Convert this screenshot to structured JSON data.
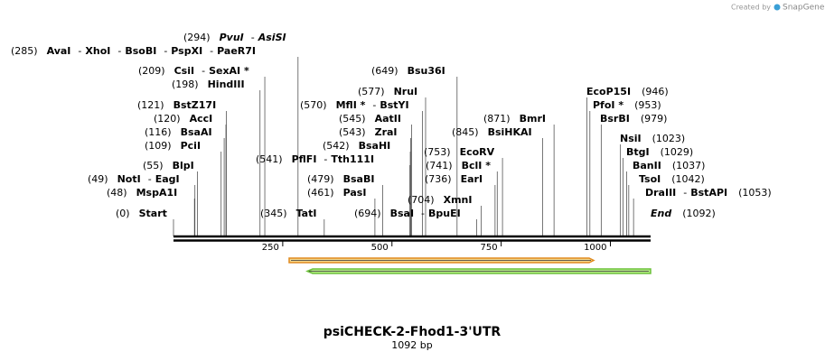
{
  "credit": {
    "prefix": "Created by",
    "brand": "SnapGene"
  },
  "separator": "-",
  "map": {
    "title": "psiCHECK-2-Fhod1-3'UTR",
    "length": "1092 bp",
    "ticks": [
      250,
      500,
      750,
      1000
    ],
    "sites": [
      {
        "pos": {
          "value": 294,
          "label": "(294)"
        },
        "names": [
          "PvuI",
          "AsiSI"
        ]
      },
      {
        "pos": {
          "value": 285,
          "label": "(285)"
        },
        "names": [
          "AvaI",
          "XhoI",
          "BsoBI",
          "PspXI",
          "PaeR7I"
        ]
      },
      {
        "pos": {
          "value": 209,
          "label": "(209)"
        },
        "names": [
          "CsiI",
          "SexAI *"
        ]
      },
      {
        "pos": {
          "value": 198,
          "label": "(198)"
        },
        "names": [
          "HindIII"
        ]
      },
      {
        "pos": {
          "value": 121,
          "label": "(121)"
        },
        "names": [
          "BstZ17I"
        ]
      },
      {
        "pos": {
          "value": 120,
          "label": "(120)"
        },
        "names": [
          "AccI"
        ]
      },
      {
        "pos": {
          "value": 116,
          "label": "(116)"
        },
        "names": [
          "BsaAI"
        ]
      },
      {
        "pos": {
          "value": 109,
          "label": "(109)"
        },
        "names": [
          "PciI"
        ]
      },
      {
        "pos": {
          "value": 55,
          "label": "(55)"
        },
        "names": [
          "BlpI"
        ]
      },
      {
        "pos": {
          "value": 49,
          "label": "(49)"
        },
        "names": [
          "NotI",
          "EagI"
        ]
      },
      {
        "pos": {
          "value": 48,
          "label": "(48)"
        },
        "names": [
          "MspA1I"
        ]
      },
      {
        "pos": {
          "value": 0,
          "label": "(0)"
        },
        "names": [
          "Start"
        ]
      },
      {
        "pos": {
          "value": 345,
          "label": "(345)"
        },
        "names": [
          "TatI"
        ]
      },
      {
        "pos": {
          "value": 541,
          "label": "(541)"
        },
        "names": [
          "PflFI",
          "Tth111I"
        ]
      },
      {
        "pos": {
          "value": 570,
          "label": "(570)"
        },
        "names": [
          "MflI *",
          "BstYI"
        ]
      },
      {
        "pos": {
          "value": 577,
          "label": "(577)"
        },
        "names": [
          "NruI"
        ]
      },
      {
        "pos": {
          "value": 649,
          "label": "(649)"
        },
        "names": [
          "Bsu36I"
        ]
      },
      {
        "pos": {
          "value": 545,
          "label": "(545)"
        },
        "names": [
          "AatII"
        ]
      },
      {
        "pos": {
          "value": 543,
          "label": "(543)"
        },
        "names": [
          "ZraI"
        ]
      },
      {
        "pos": {
          "value": 542,
          "label": "(542)"
        },
        "names": [
          "BsaHI"
        ]
      },
      {
        "pos": {
          "value": 479,
          "label": "(479)"
        },
        "names": [
          "BsaBI"
        ]
      },
      {
        "pos": {
          "value": 461,
          "label": "(461)"
        },
        "names": [
          "PasI"
        ]
      },
      {
        "pos": {
          "value": 694,
          "label": "(694)"
        },
        "names": [
          "BsaI",
          "BpuEI"
        ]
      },
      {
        "pos": {
          "value": 704,
          "label": "(704)"
        },
        "names": [
          "XmnI"
        ]
      },
      {
        "pos": {
          "value": 736,
          "label": "(736)"
        },
        "names": [
          "EarI"
        ]
      },
      {
        "pos": {
          "value": 741,
          "label": "(741)"
        },
        "names": [
          "BclI *"
        ]
      },
      {
        "pos": {
          "value": 753,
          "label": "(753)"
        },
        "names": [
          "EcoRV"
        ]
      },
      {
        "pos": {
          "value": 845,
          "label": "(845)"
        },
        "names": [
          "BsiHKAI"
        ]
      },
      {
        "pos": {
          "value": 871,
          "label": "(871)"
        },
        "names": [
          "BmrI"
        ]
      },
      {
        "pos": {
          "value": 946,
          "label": "(946)"
        },
        "names": [
          "EcoP15I"
        ]
      },
      {
        "pos": {
          "value": 953,
          "label": "(953)"
        },
        "names": [
          "PfoI *"
        ]
      },
      {
        "pos": {
          "value": 979,
          "label": "(979)"
        },
        "names": [
          "BsrBI"
        ]
      },
      {
        "pos": {
          "value": 1023,
          "label": "(1023)"
        },
        "names": [
          "NsiI"
        ]
      },
      {
        "pos": {
          "value": 1029,
          "label": "(1029)"
        },
        "names": [
          "BtgI"
        ]
      },
      {
        "pos": {
          "value": 1037,
          "label": "(1037)"
        },
        "names": [
          "BanII"
        ]
      },
      {
        "pos": {
          "value": 1042,
          "label": "(1042)"
        },
        "names": [
          "TsoI"
        ]
      },
      {
        "pos": {
          "value": 1053,
          "label": "(1053)"
        },
        "names": [
          "DraIII",
          "BstAPI"
        ]
      },
      {
        "pos": {
          "value": 1092,
          "label": "(1092)"
        },
        "names": [
          "End"
        ]
      }
    ]
  }
}
